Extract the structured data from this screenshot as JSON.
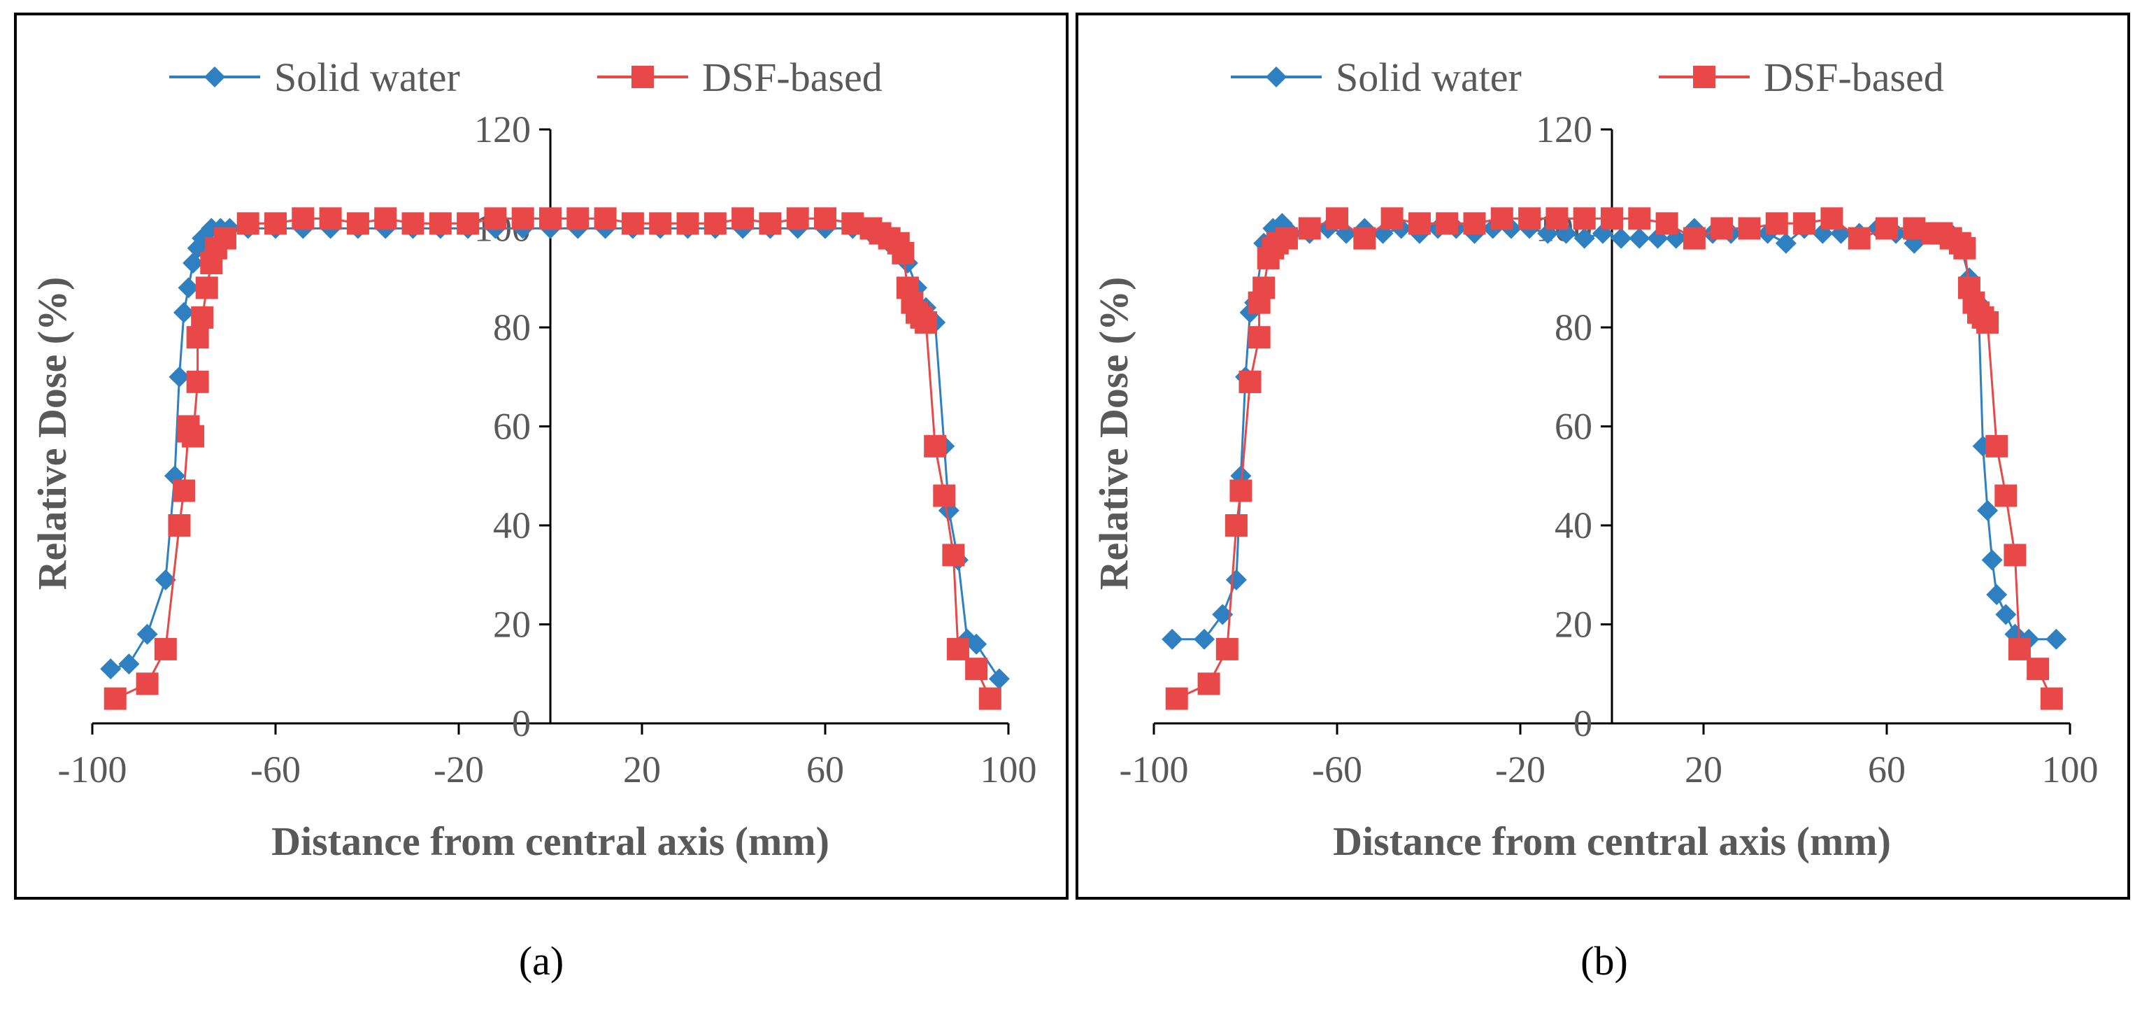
{
  "colors": {
    "solid_water": "#2e80c0",
    "dsf_based": "#e84848",
    "axis": "#000000",
    "text": "#595959"
  },
  "captions": [
    "(a)",
    "(b)"
  ],
  "chart_data": [
    {
      "type": "line",
      "xlabel": "Distance from central axis (mm)",
      "ylabel": "Relative Dose (%)",
      "xlim": [
        -100,
        100
      ],
      "ylim": [
        0,
        120
      ],
      "xticks": [
        -100,
        -60,
        -20,
        20,
        60,
        100
      ],
      "yticks": [
        0,
        20,
        40,
        60,
        80,
        100,
        120
      ],
      "grid": false,
      "legend_position": "top",
      "series": [
        {
          "name": "Solid water",
          "marker": "diamond",
          "x": [
            -96,
            -92,
            -88,
            -84,
            -82,
            -81,
            -80,
            -79,
            -78,
            -77,
            -76,
            -74,
            -72,
            -70,
            -66,
            -60,
            -54,
            -48,
            -42,
            -36,
            -30,
            -24,
            -18,
            -12,
            -6,
            0,
            6,
            12,
            18,
            24,
            30,
            36,
            42,
            48,
            54,
            60,
            66,
            70,
            74,
            76,
            78,
            80,
            82,
            84,
            86,
            87,
            89,
            91,
            93,
            98
          ],
          "y": [
            11,
            12,
            18,
            29,
            50,
            70,
            83,
            88,
            93,
            96,
            98,
            100,
            100,
            100,
            100,
            100,
            100,
            100,
            100,
            100,
            100,
            100,
            100,
            100,
            100,
            100,
            100,
            100,
            100,
            100,
            100,
            100,
            100,
            100,
            100,
            100,
            100,
            99,
            97,
            96,
            93,
            88,
            84,
            81,
            56,
            43,
            33,
            17,
            16,
            9
          ]
        },
        {
          "name": "DSF-based",
          "marker": "square",
          "x": [
            -95,
            -88,
            -84,
            -81,
            -80,
            -79,
            -79,
            -78,
            -77,
            -77,
            -76,
            -75,
            -74,
            -73,
            -71,
            -66,
            -60,
            -54,
            -48,
            -42,
            -36,
            -30,
            -24,
            -18,
            -12,
            -6,
            0,
            6,
            12,
            18,
            24,
            30,
            36,
            42,
            48,
            54,
            60,
            66,
            70,
            72,
            74,
            76,
            77,
            78,
            79,
            80,
            81,
            82,
            84,
            86,
            88,
            89,
            93,
            96
          ],
          "y": [
            5,
            8,
            15,
            40,
            47,
            59,
            60,
            58,
            69,
            78,
            82,
            88,
            93,
            96,
            98,
            101,
            101,
            102,
            102,
            101,
            102,
            101,
            101,
            101,
            102,
            102,
            102,
            102,
            102,
            101,
            101,
            101,
            101,
            102,
            101,
            102,
            102,
            101,
            100,
            99,
            98,
            97,
            95,
            88,
            85,
            83,
            82,
            81,
            56,
            46,
            34,
            15,
            11,
            5
          ]
        }
      ]
    },
    {
      "type": "line",
      "xlabel": "Distance from central axis (mm)",
      "ylabel": "Relative Dose (%)",
      "xlim": [
        -100,
        100
      ],
      "ylim": [
        0,
        120
      ],
      "xticks": [
        -100,
        -60,
        -20,
        20,
        60,
        100
      ],
      "yticks": [
        0,
        20,
        40,
        60,
        80,
        100,
        120
      ],
      "grid": false,
      "legend_position": "top",
      "series": [
        {
          "name": "Solid water",
          "marker": "diamond",
          "x": [
            -96,
            -89,
            -85,
            -82,
            -81,
            -80,
            -79,
            -78,
            -76,
            -74,
            -72,
            -70,
            -66,
            -62,
            -58,
            -54,
            -50,
            -46,
            -42,
            -38,
            -34,
            -30,
            -26,
            -22,
            -18,
            -14,
            -10,
            -6,
            -2,
            2,
            6,
            10,
            14,
            18,
            22,
            26,
            30,
            34,
            38,
            42,
            46,
            50,
            54,
            58,
            62,
            66,
            70,
            74,
            76,
            78,
            80,
            81,
            82,
            83,
            84,
            86,
            88,
            91,
            97
          ],
          "y": [
            17,
            17,
            22,
            29,
            50,
            70,
            83,
            85,
            97,
            100,
            101,
            99,
            99,
            100,
            99,
            100,
            99,
            100,
            99,
            100,
            100,
            99,
            100,
            100,
            100,
            99,
            99,
            98,
            99,
            98,
            98,
            98,
            98,
            100,
            99,
            99,
            100,
            99,
            97,
            100,
            99,
            99,
            99,
            100,
            99,
            97,
            99,
            99,
            97,
            90,
            85,
            56,
            43,
            33,
            26,
            22,
            18,
            17,
            17
          ]
        },
        {
          "name": "DSF-based",
          "marker": "square",
          "x": [
            -95,
            -88,
            -84,
            -82,
            -81,
            -79,
            -79,
            -77,
            -77,
            -76,
            -75,
            -74,
            -73,
            -71,
            -66,
            -60,
            -54,
            -48,
            -42,
            -36,
            -30,
            -24,
            -18,
            -12,
            -6,
            0,
            6,
            12,
            18,
            24,
            30,
            36,
            42,
            48,
            54,
            60,
            66,
            70,
            72,
            74,
            76,
            77,
            78,
            79,
            80,
            81,
            82,
            84,
            86,
            88,
            89,
            93,
            96
          ],
          "y": [
            5,
            8,
            15,
            40,
            47,
            69,
            69,
            78,
            85,
            88,
            94,
            96,
            97,
            98,
            100,
            102,
            98,
            102,
            101,
            101,
            101,
            102,
            102,
            102,
            102,
            102,
            102,
            101,
            98,
            100,
            100,
            101,
            101,
            102,
            98,
            100,
            100,
            99,
            99,
            98,
            97,
            96,
            88,
            85,
            83,
            82,
            81,
            56,
            46,
            34,
            15,
            11,
            5
          ]
        }
      ]
    }
  ]
}
